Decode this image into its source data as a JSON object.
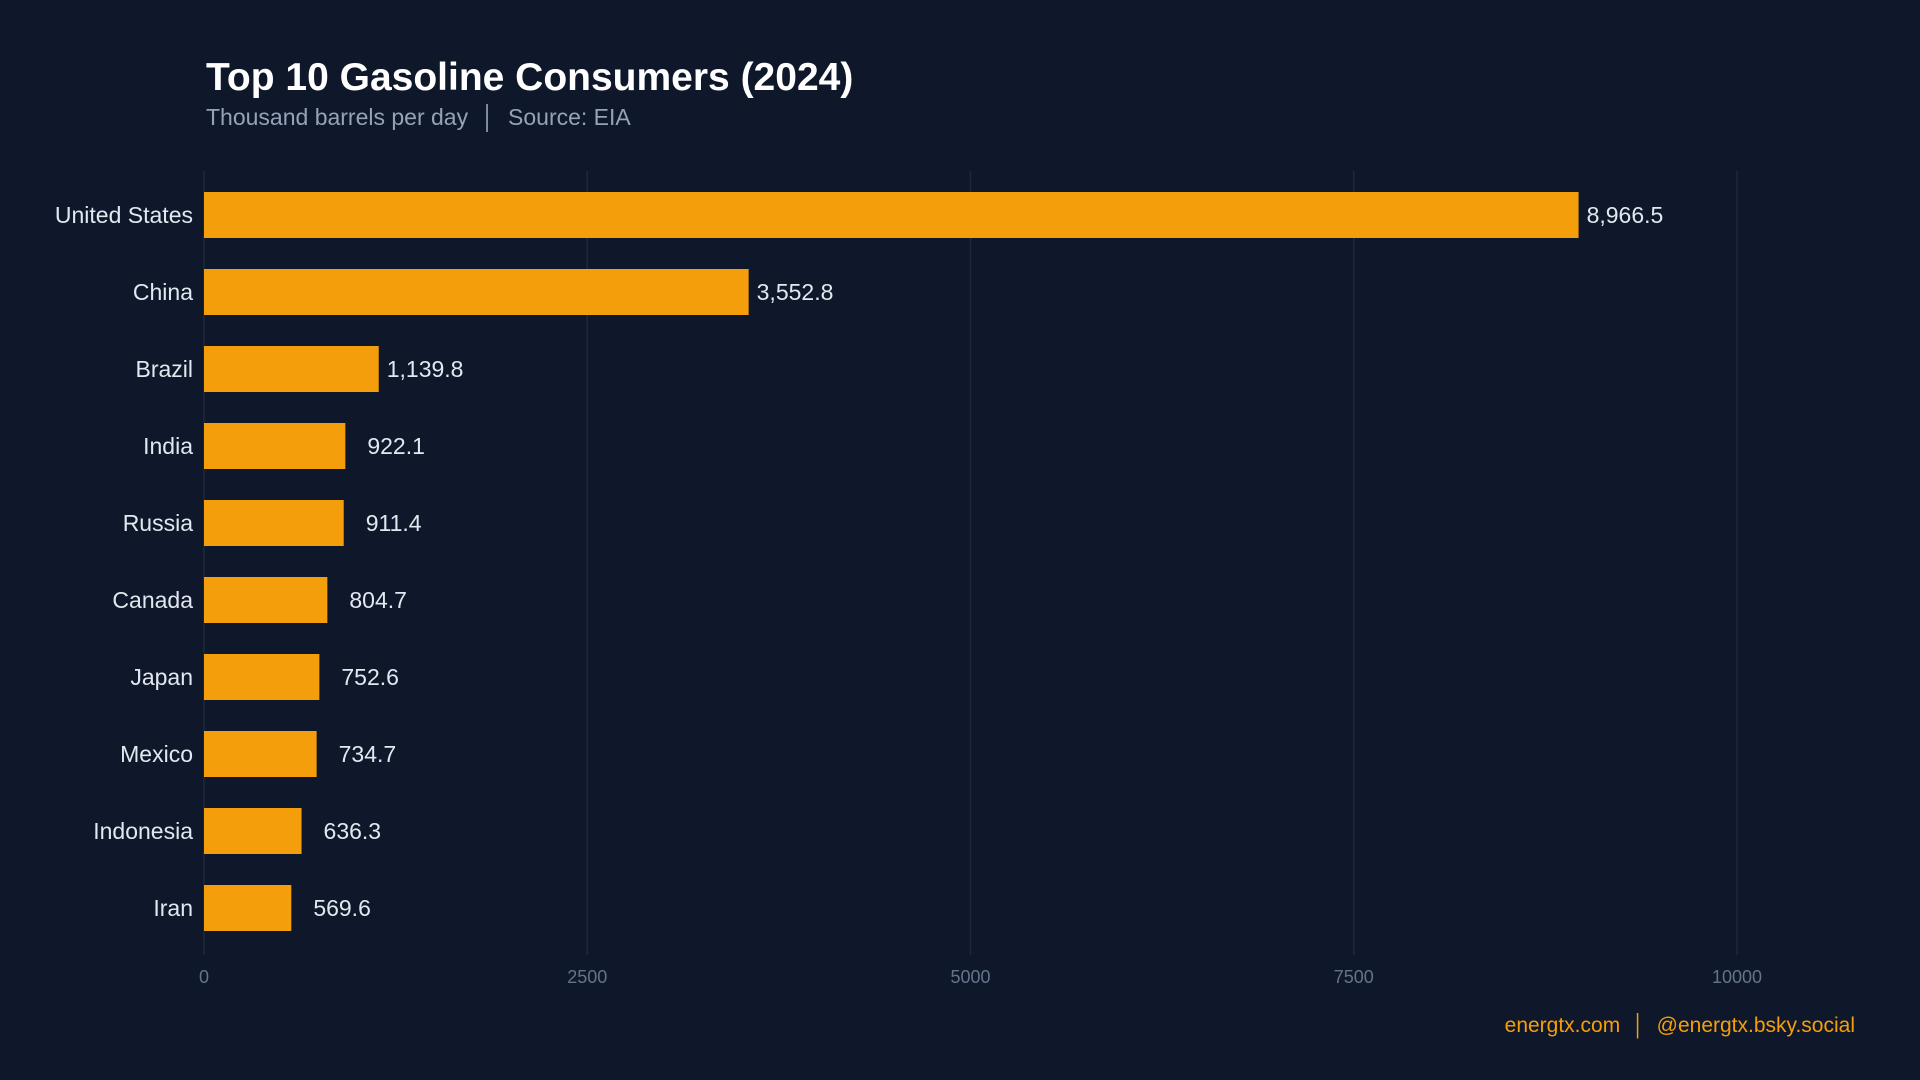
{
  "chart_data": {
    "type": "bar",
    "orientation": "horizontal",
    "title": "Top 10 Gasoline Consumers (2024)",
    "subtitle": "Thousand barrels per day  │  Source: EIA",
    "categories": [
      "United States",
      "China",
      "Brazil",
      "India",
      "Russia",
      "Canada",
      "Japan",
      "Mexico",
      "Indonesia",
      "Iran"
    ],
    "values": [
      8966.5,
      3552.8,
      1139.8,
      922.1,
      911.4,
      804.7,
      752.6,
      734.7,
      636.3,
      569.6
    ],
    "data_labels": [
      "8,966.5",
      "3,552.8",
      "1,139.8",
      "922.1",
      "911.4",
      "804.7",
      "752.6",
      "734.7",
      "636.3",
      "569.6"
    ],
    "xlim": [
      0,
      10000
    ],
    "xticks": [
      "0",
      "2500",
      "5000",
      "7500",
      "10000"
    ],
    "xtick_values": [
      0,
      2500,
      5000,
      7500,
      10000
    ],
    "xlabel": "",
    "ylabel": "",
    "grid": "vertical",
    "colors": {
      "bar": "#f59e0b",
      "background": "#0f172a",
      "grid": "#1e293b",
      "label": "#e2e8f0",
      "tick": "#64748b"
    }
  },
  "footer": "energtx.com  │  @energtx.bsky.social"
}
